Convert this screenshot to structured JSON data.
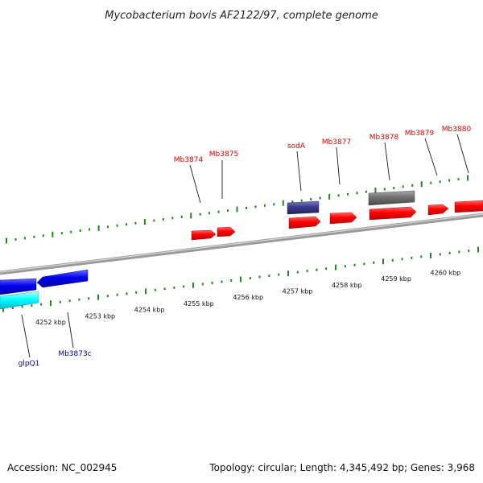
{
  "title": "Mycobacterium bovis AF2122/97, complete genome",
  "footer": {
    "accession": "Accession: NC_002945",
    "info": "Topology: circular; Length: 4,345,492 bp; Genes: 3,968"
  },
  "colors": {
    "forward_gene": "#ff0000",
    "reverse_gene": "#0000ee",
    "reverse_rna": "#00ffff",
    "grey_feature": "#707070",
    "purple_feature": "#3a3a8a",
    "backbone": "#888888",
    "ticks": "#228822",
    "forward_label": "#e00000",
    "reverse_label": "#0000aa"
  },
  "kbp_labels": [
    "4252 kbp",
    "4253 kbp",
    "4254 kbp",
    "4255 kbp",
    "4256 kbp",
    "4257 kbp",
    "4258 kbp",
    "4259 kbp",
    "4260 kbp"
  ],
  "forward_features": [
    {
      "label": "Mb3874",
      "color": "forward_gene"
    },
    {
      "label": "Mb3875",
      "color": "forward_gene"
    },
    {
      "label": "sodA",
      "color": "purple_feature"
    },
    {
      "label": "Mb3877",
      "color": "forward_gene"
    },
    {
      "label": "Mb3878",
      "color": "forward_gene"
    },
    {
      "label": "Mb3879",
      "color": "forward_gene"
    },
    {
      "label": "Mb3880",
      "color": "forward_gene"
    }
  ],
  "reverse_features": [
    {
      "label": "glpQ1",
      "color": "reverse_rna"
    },
    {
      "label": "Mb3873c",
      "color": "reverse_gene"
    }
  ]
}
